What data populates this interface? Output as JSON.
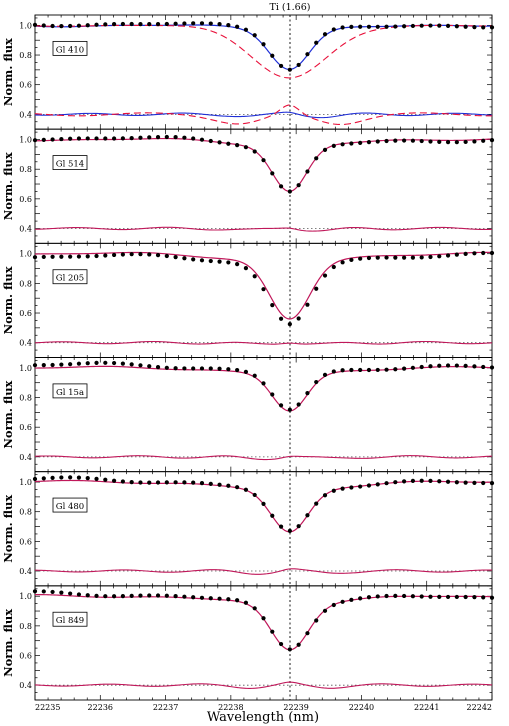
{
  "chart_data": {
    "type": "line",
    "line_label": "Ti (1.66)",
    "line_center": 22238.9,
    "xlabel": "Wavelength (nm)",
    "ylabel": "Norm. flux",
    "xlim": [
      22235,
      22242
    ],
    "ylim": [
      0.3,
      1.07
    ],
    "xticks": [
      "22235",
      "22236",
      "22237",
      "22238",
      "22239",
      "22240",
      "22241",
      "22242"
    ],
    "yticks": [
      "0.4",
      "0.6",
      "0.8",
      "1.0"
    ],
    "residual_offset": 0.4,
    "colors": {
      "observed": "#000000",
      "model_blue": "#1f2fd6",
      "model_red": "#e8103a",
      "model_magenta": "#c0185a"
    },
    "panels": [
      {
        "star": "Gl 410",
        "depth": 0.27,
        "width": 0.3,
        "wing_width": 0.9,
        "wing_depth": 0.02,
        "obs_left": 0.012,
        "obs_right": -0.005,
        "obs_extra_depth": 0.0,
        "obs_extra_width": -0.04,
        "extra_models": [
          {
            "name": "",
            "style": "dashed",
            "color": "#e8103a",
            "depth_scale": 1.22,
            "width_scale": 1.9
          }
        ]
      },
      {
        "star": "Gl 514",
        "depth": 0.31,
        "width": 0.26,
        "wing_width": 0.8,
        "wing_depth": 0.04,
        "obs_left": 0.01,
        "obs_right": -0.01,
        "obs_extra_depth": 0.0,
        "obs_extra_width": 0.0,
        "extra_models": []
      },
      {
        "star": "Gl 205",
        "depth": 0.39,
        "width": 0.3,
        "wing_width": 0.9,
        "wing_depth": 0.05,
        "obs_left": -0.02,
        "obs_right": -0.01,
        "obs_extra_depth": 0.02,
        "obs_extra_width": 0.04,
        "extra_models": []
      },
      {
        "star": "Gl 15a",
        "depth": 0.25,
        "width": 0.26,
        "wing_width": 0.8,
        "wing_depth": 0.04,
        "obs_left": 0.02,
        "obs_right": 0.0,
        "obs_extra_depth": 0.0,
        "obs_extra_width": 0.0,
        "extra_models": []
      },
      {
        "star": "Gl 480",
        "depth": 0.29,
        "width": 0.28,
        "wing_width": 0.85,
        "wing_depth": 0.05,
        "obs_left": 0.015,
        "obs_right": -0.005,
        "obs_extra_depth": 0.0,
        "obs_extra_width": 0.02,
        "extra_models": []
      },
      {
        "star": "Gl 849",
        "depth": 0.31,
        "width": 0.28,
        "wing_width": 0.85,
        "wing_depth": 0.05,
        "obs_left": 0.015,
        "obs_right": -0.005,
        "obs_extra_depth": 0.0,
        "obs_extra_width": 0.02,
        "extra_models": []
      }
    ]
  }
}
